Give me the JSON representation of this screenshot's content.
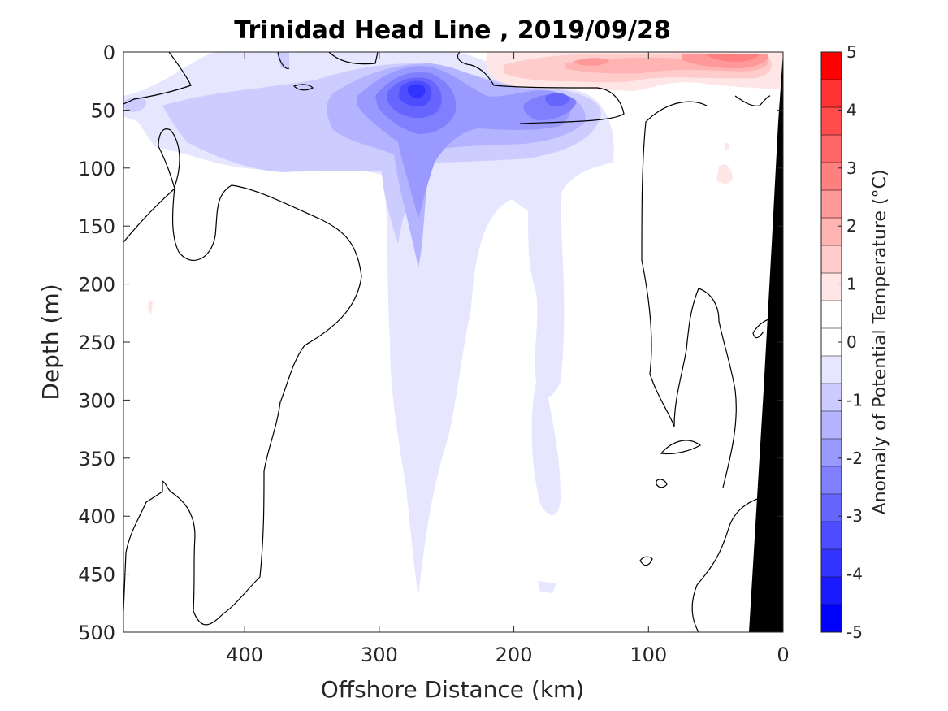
{
  "chart_data": {
    "type": "contour",
    "title": "Trinidad Head Line , 2019/09/28",
    "xlabel": "Offshore Distance (km)",
    "ylabel": "Depth (m)",
    "xlim": [
      490,
      0
    ],
    "ylim": [
      500,
      0
    ],
    "x_reversed": true,
    "y_reversed": true,
    "x_ticks": [
      400,
      300,
      200,
      100,
      0
    ],
    "y_ticks": [
      0,
      50,
      100,
      150,
      200,
      250,
      300,
      350,
      400,
      450,
      500
    ],
    "grid": false,
    "colorbar": {
      "label": "Anomaly of Potential Temperature (°C)",
      "range": [
        -5,
        5
      ],
      "ticks": [
        5,
        4,
        3,
        2,
        1,
        0,
        -1,
        -2,
        -3,
        -4,
        -5
      ],
      "levels": [
        -5,
        -4.5,
        -4,
        -3.5,
        -3,
        -2.5,
        -2,
        -1.5,
        -1,
        -0.5,
        0,
        0.5,
        1,
        1.5,
        2,
        2.5,
        3,
        3.5,
        4,
        4.5,
        5
      ],
      "colors": [
        "#0000ff",
        "#1a1aff",
        "#3333ff",
        "#4d4dff",
        "#6666ff",
        "#8080ff",
        "#9999ff",
        "#b3b3ff",
        "#ccccff",
        "#e6e6ff",
        "#ffffff",
        "#ffffff",
        "#ffe6e6",
        "#ffcccc",
        "#ffb3b3",
        "#ff9999",
        "#ff8080",
        "#ff6666",
        "#ff4d4d",
        "#ff3333",
        "#ff0000"
      ]
    },
    "features": [
      {
        "name": "cold-core",
        "anomaly_min": -3.5,
        "x_km": 270,
        "depth_m": 30
      },
      {
        "name": "secondary-cold-core",
        "anomaly_min": -2,
        "x_km": 175,
        "depth_m": 40
      },
      {
        "name": "warm-surface-layer",
        "anomaly_max": 2.5,
        "x_km": 40,
        "depth_m": 0
      },
      {
        "name": "bathymetry",
        "color": "#000000",
        "x_km_at_surface": 0,
        "x_km_at_500m": 30
      }
    ]
  }
}
